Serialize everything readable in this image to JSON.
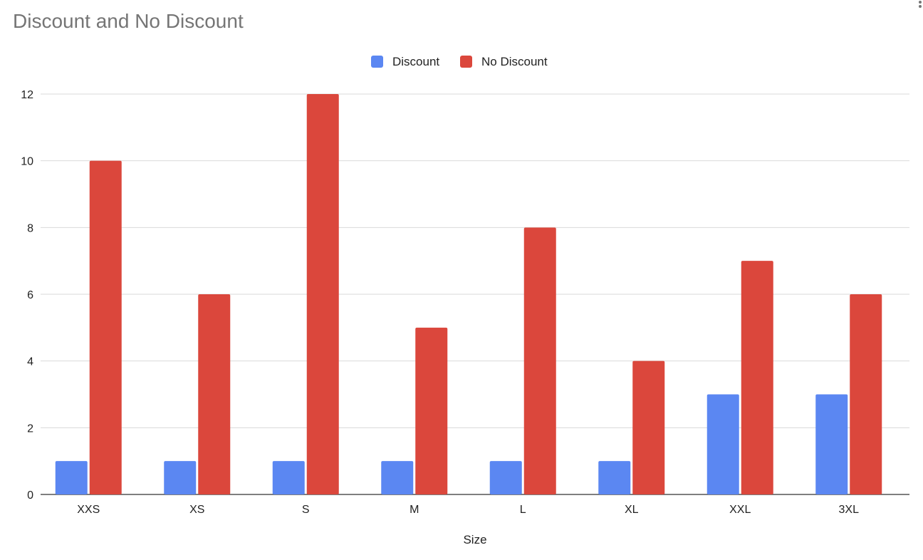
{
  "chart_data": {
    "type": "bar",
    "title": "Discount and No Discount",
    "xlabel": "Size",
    "ylabel": "",
    "categories": [
      "XXS",
      "XS",
      "S",
      "M",
      "L",
      "XL",
      "XXL",
      "3XL"
    ],
    "series": [
      {
        "name": "Discount",
        "color": "#5B87F2",
        "values": [
          1,
          1,
          1,
          1,
          1,
          1,
          3,
          3
        ]
      },
      {
        "name": "No Discount",
        "color": "#DB473C",
        "values": [
          10,
          6,
          12,
          5,
          8,
          4,
          7,
          6
        ]
      }
    ],
    "ylim": [
      0,
      12
    ],
    "yticks": [
      "0",
      "2",
      "4",
      "6",
      "8",
      "10",
      "12"
    ],
    "grid": true,
    "legend_position": "top-center"
  }
}
